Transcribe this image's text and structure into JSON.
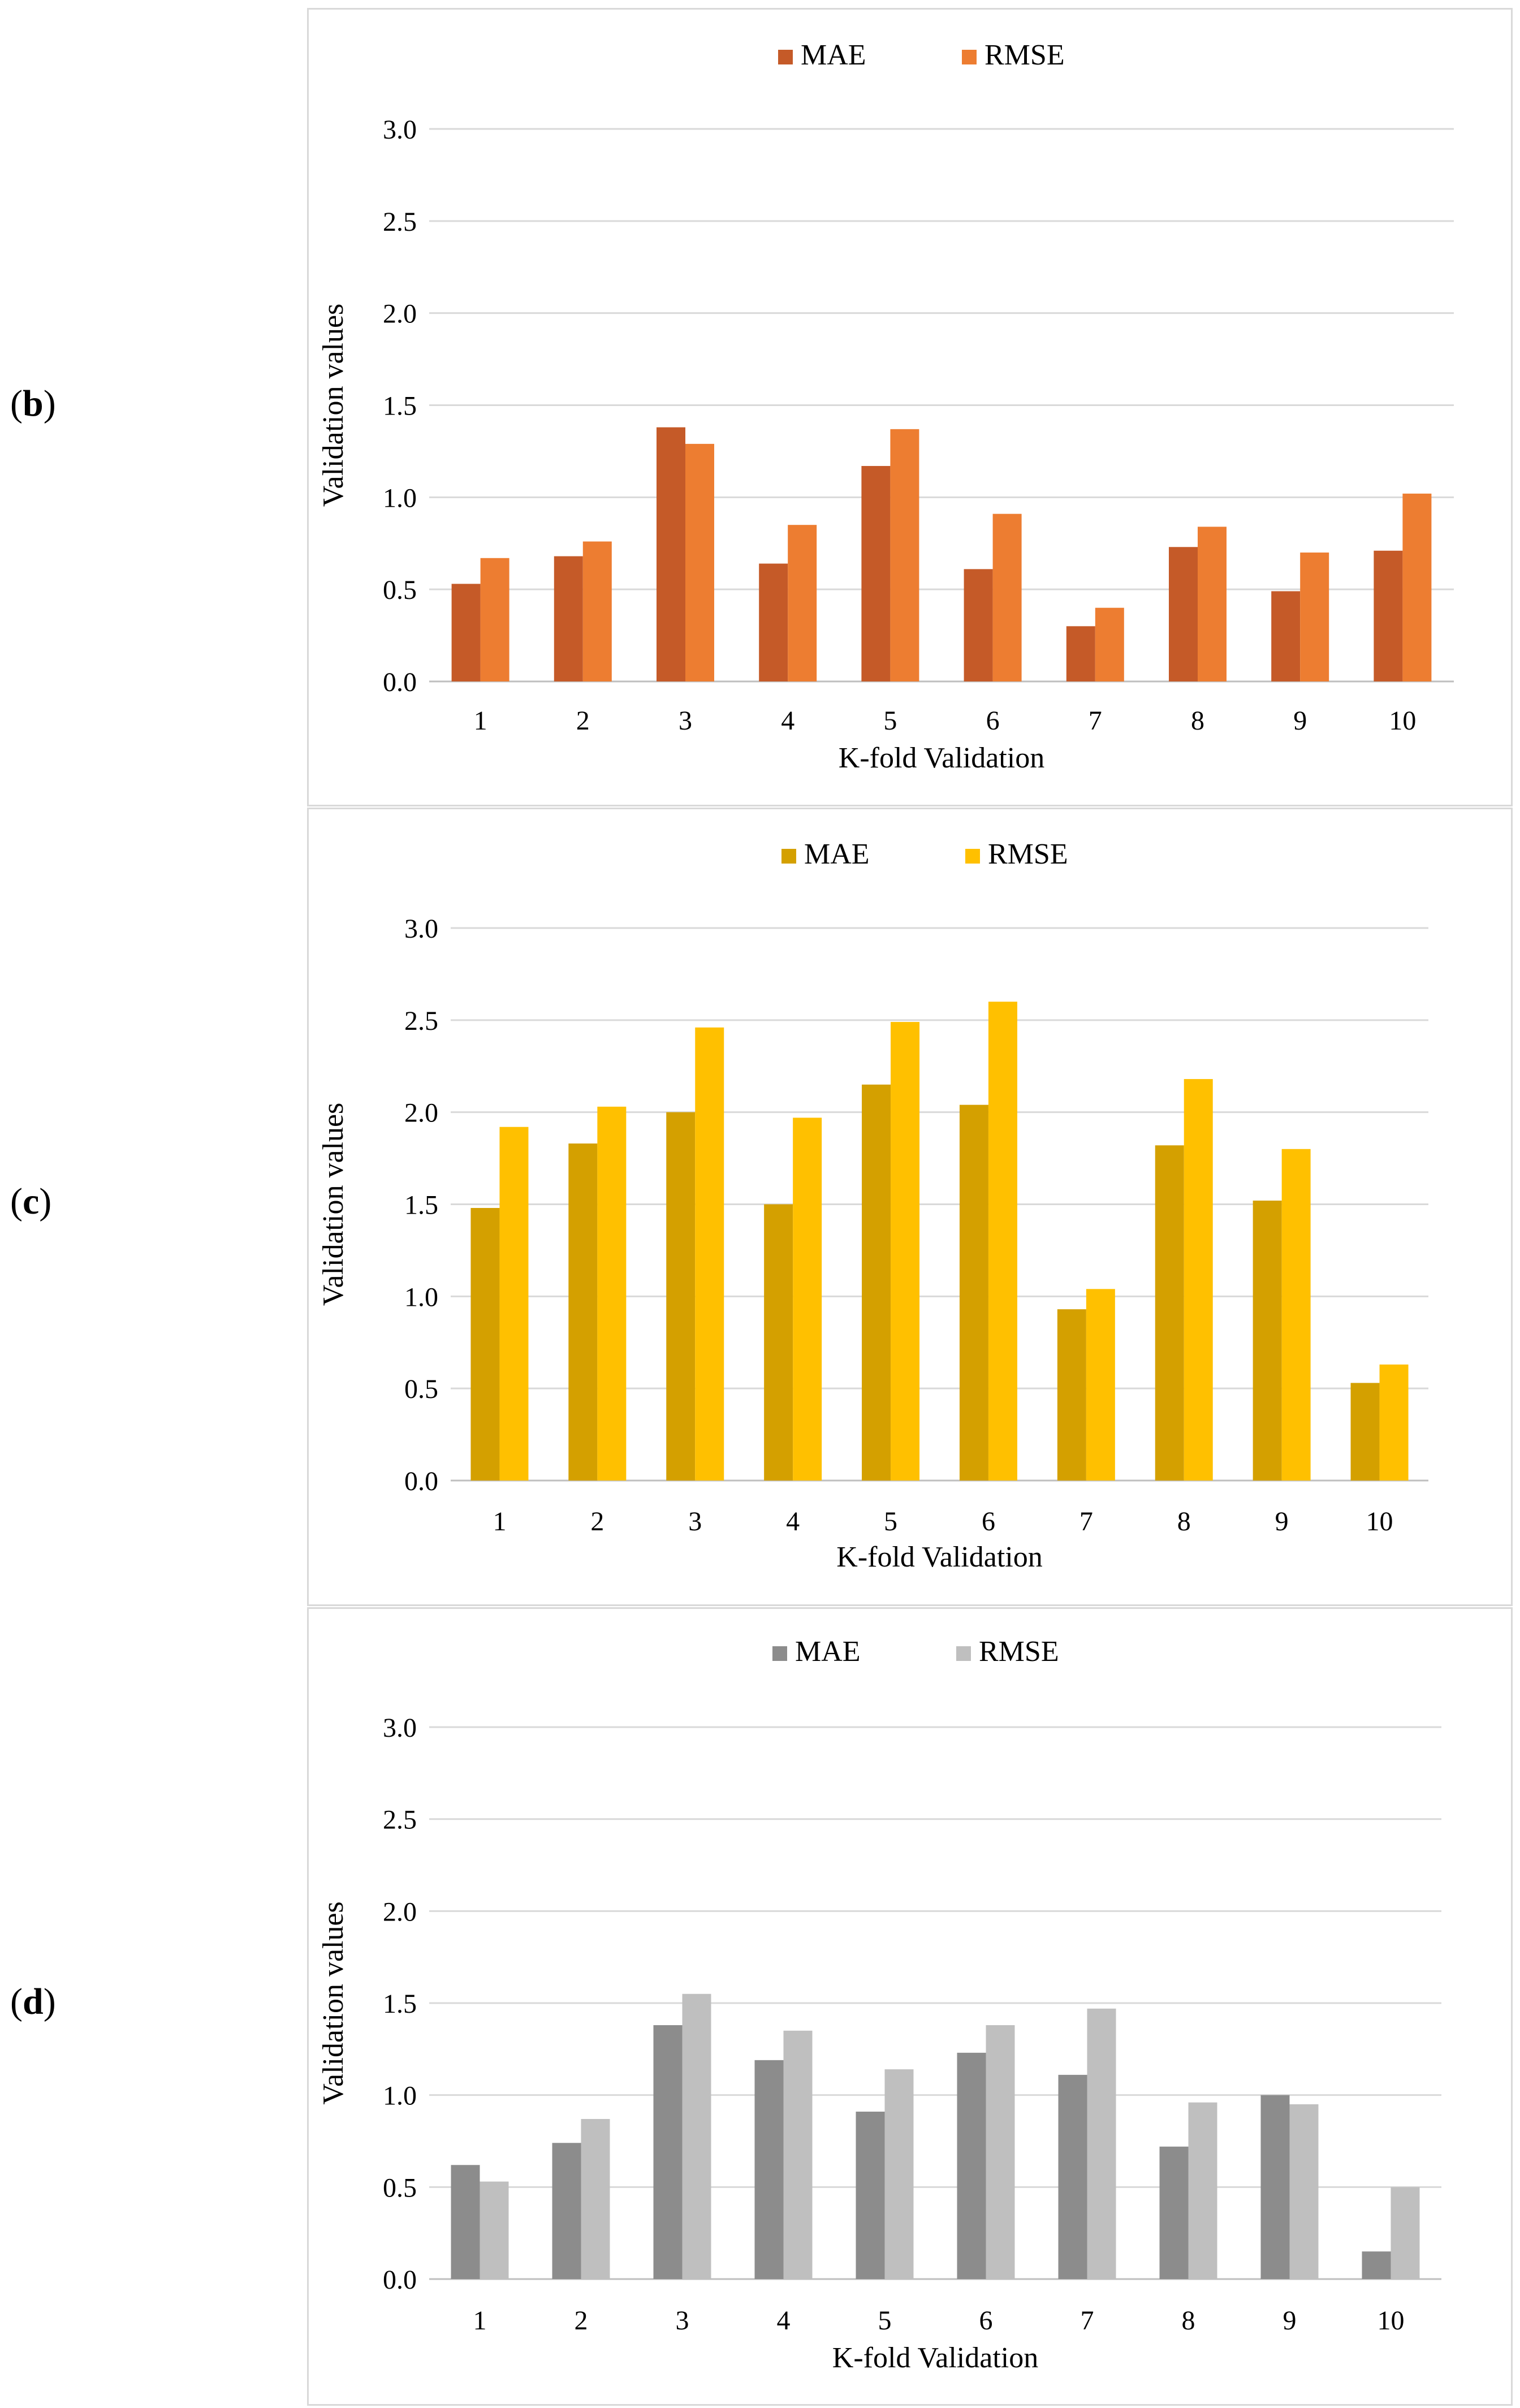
{
  "panels": [
    {
      "label_letter": "b",
      "chart_data": {
        "type": "bar",
        "xlabel": "K-fold Validation",
        "ylabel": "Validation values",
        "ylim": [
          0,
          3.0
        ],
        "yticks": [
          "0.0",
          "0.5",
          "1.0",
          "1.5",
          "2.0",
          "2.5",
          "3.0"
        ],
        "categories": [
          "1",
          "2",
          "3",
          "4",
          "5",
          "6",
          "7",
          "8",
          "9",
          "10"
        ],
        "series": [
          {
            "name": "MAE",
            "color": "#c55a28",
            "values": [
              0.53,
              0.68,
              1.38,
              0.64,
              1.17,
              0.61,
              0.3,
              0.73,
              0.49,
              0.71
            ]
          },
          {
            "name": "RMSE",
            "color": "#ed7d31",
            "values": [
              0.67,
              0.76,
              1.29,
              0.85,
              1.37,
              0.91,
              0.4,
              0.84,
              0.7,
              1.02
            ]
          }
        ]
      }
    },
    {
      "label_letter": "c",
      "chart_data": {
        "type": "bar",
        "xlabel": "K-fold Validation",
        "ylabel": "Validation values",
        "ylim": [
          0,
          3.0
        ],
        "yticks": [
          "0.0",
          "0.5",
          "1.0",
          "1.5",
          "2.0",
          "2.5",
          "3.0"
        ],
        "categories": [
          "1",
          "2",
          "3",
          "4",
          "5",
          "6",
          "7",
          "8",
          "9",
          "10"
        ],
        "series": [
          {
            "name": "MAE",
            "color": "#d4a000",
            "values": [
              1.48,
              1.83,
              2.0,
              1.5,
              2.15,
              2.04,
              0.93,
              1.82,
              1.52,
              0.53
            ]
          },
          {
            "name": "RMSE",
            "color": "#ffc000",
            "values": [
              1.92,
              2.03,
              2.46,
              1.97,
              2.49,
              2.6,
              1.04,
              2.18,
              1.8,
              0.63
            ]
          }
        ]
      }
    },
    {
      "label_letter": "d",
      "chart_data": {
        "type": "bar",
        "xlabel": "K-fold Validation",
        "ylabel": "Validation values",
        "ylim": [
          0,
          3.0
        ],
        "yticks": [
          "0.0",
          "0.5",
          "1.0",
          "1.5",
          "2.0",
          "2.5",
          "3.0"
        ],
        "categories": [
          "1",
          "2",
          "3",
          "4",
          "5",
          "6",
          "7",
          "8",
          "9",
          "10"
        ],
        "series": [
          {
            "name": "MAE",
            "color": "#8c8c8c",
            "values": [
              0.62,
              0.74,
              1.38,
              1.19,
              0.91,
              1.23,
              1.11,
              0.72,
              1.0,
              0.15
            ]
          },
          {
            "name": "RMSE",
            "color": "#bfbfbf",
            "values": [
              0.53,
              0.87,
              1.55,
              1.35,
              1.14,
              1.38,
              1.47,
              0.96,
              0.95,
              0.5
            ]
          }
        ]
      }
    }
  ]
}
